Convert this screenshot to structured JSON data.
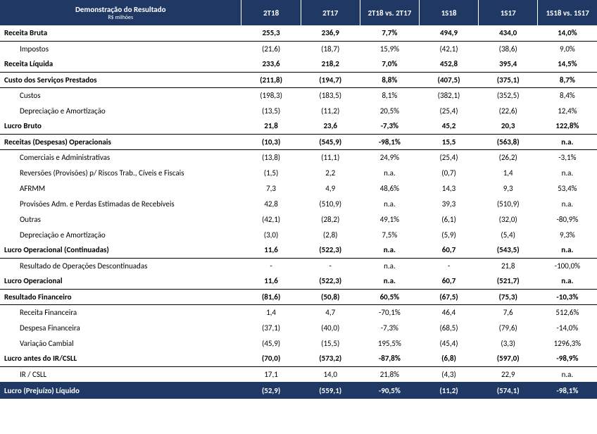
{
  "header": {
    "title": "Demonstração do Resultado",
    "subtitle": "R$ milhões",
    "columns": [
      "2T18",
      "2T17",
      "2T18 vs. 2T17",
      "1S18",
      "1S17",
      "1S18 vs. 1S17"
    ]
  },
  "rows": [
    {
      "style": "bold-row",
      "label": "Receita Bruta",
      "c": [
        "255,3",
        "236,9",
        "7,7%",
        "494,9",
        "434,0",
        "14,0%"
      ]
    },
    {
      "style": "indent1",
      "label": "Impostos",
      "c": [
        "(21,6)",
        "(18,7)",
        "15,9%",
        "(42,1)",
        "(38,6)",
        "9,0%"
      ]
    },
    {
      "style": "bold-row",
      "label": "Receita Líquida",
      "c": [
        "233,6",
        "218,2",
        "7,0%",
        "452,8",
        "395,4",
        "14,5%"
      ]
    },
    {
      "style": "bold-row",
      "label": "Custo dos Serviços Prestados",
      "c": [
        "(211,8)",
        "(194,7)",
        "8,8%",
        "(407,5)",
        "(375,1)",
        "8,7%"
      ]
    },
    {
      "style": "indent1",
      "label": "Custos",
      "c": [
        "(198,3)",
        "(183,5)",
        "8,1%",
        "(382,1)",
        "(352,5)",
        "8,4%"
      ]
    },
    {
      "style": "indent1",
      "label": "Depreciação e Amortização",
      "c": [
        "(13,5)",
        "(11,2)",
        "20,5%",
        "(25,4)",
        "(22,6)",
        "12,4%"
      ]
    },
    {
      "style": "bold-row",
      "label": "Lucro Bruto",
      "c": [
        "21,8",
        "23,6",
        "-7,3%",
        "45,2",
        "20,3",
        "122,8%"
      ]
    },
    {
      "style": "bold-row",
      "label": "Receitas (Despesas) Operacionais",
      "c": [
        "(10,3)",
        "(545,9)",
        "-98,1%",
        "15,5",
        "(563,8)",
        "n.a."
      ]
    },
    {
      "style": "indent1",
      "label": "Comerciais e Administrativas",
      "c": [
        "(13,8)",
        "(11,1)",
        "24,9%",
        "(25,4)",
        "(26,2)",
        "-3,1%"
      ]
    },
    {
      "style": "indent1",
      "label": "Reversões (Provisões) p/ Riscos Trab., Cíveis e Fiscais",
      "c": [
        "(1,5)",
        "2,2",
        "n.a.",
        "(0,7)",
        "1,4",
        "n.a."
      ]
    },
    {
      "style": "indent1",
      "label": "AFRMM",
      "c": [
        "7,3",
        "4,9",
        "48,6%",
        "14,3",
        "9,3",
        "53,4%"
      ]
    },
    {
      "style": "indent1",
      "label": "Provisões Adm. e Perdas Estimadas de Recebíveis",
      "c": [
        "42,8",
        "(510,9)",
        "n.a.",
        "39,3",
        "(510,9)",
        "n.a."
      ]
    },
    {
      "style": "indent1",
      "label": "Outras",
      "c": [
        "(42,1)",
        "(28,2)",
        "49,1%",
        "(6,1)",
        "(32,0)",
        "-80,9%"
      ]
    },
    {
      "style": "indent1",
      "label": "Depreciação e Amortização",
      "c": [
        "(3,0)",
        "(2,8)",
        "7,5%",
        "(5,9)",
        "(5,4)",
        "9,3%"
      ]
    },
    {
      "style": "bold-row",
      "label": "Lucro Operacional (Continuadas)",
      "c": [
        "11,6",
        "(522,3)",
        "n.a.",
        "60,7",
        "(543,5)",
        "n.a."
      ]
    },
    {
      "style": "indent1",
      "label": "Resultado de Operações Descontinuadas",
      "c": [
        "-",
        "-",
        "n.a.",
        "-",
        "21,8",
        "-100,0%"
      ]
    },
    {
      "style": "bold-row",
      "label": "Lucro Operacional",
      "c": [
        "11,6",
        "(522,3)",
        "n.a.",
        "60,7",
        "(521,7)",
        "n.a."
      ]
    },
    {
      "style": "bold-row",
      "label": "Resultado Financeiro",
      "c": [
        "(81,6)",
        "(50,8)",
        "60,5%",
        "(67,5)",
        "(75,3)",
        "-10,3%"
      ]
    },
    {
      "style": "indent1",
      "label": "Receita Financeira",
      "c": [
        "1,4",
        "4,7",
        "-70,1%",
        "46,4",
        "7,6",
        "512,6%"
      ]
    },
    {
      "style": "indent1",
      "label": "Despesa Financeira",
      "c": [
        "(37,1)",
        "(40,0)",
        "-7,3%",
        "(68,5)",
        "(79,6)",
        "-14,0%"
      ]
    },
    {
      "style": "indent1",
      "label": "Variação Cambial",
      "c": [
        "(45,9)",
        "(15,5)",
        "195,5%",
        "(45,4)",
        "(3,3)",
        "1296,3%"
      ]
    },
    {
      "style": "bold-row",
      "label": "Lucro antes do IR/CSLL",
      "c": [
        "(70,0)",
        "(573,2)",
        "-87,8%",
        "(6,8)",
        "(597,0)",
        "-98,9%"
      ]
    },
    {
      "style": "indent1",
      "label": "IR / CSLL",
      "c": [
        "17,1",
        "14,0",
        "21,8%",
        "(4,3)",
        "22,9",
        "n.a."
      ]
    },
    {
      "style": "footer-row",
      "label": "Lucro (Prejuízo) Líquido",
      "c": [
        "(52,9)",
        "(559,1)",
        "-90,5%",
        "(11,2)",
        "(574,1)",
        "-98,1%"
      ]
    }
  ]
}
